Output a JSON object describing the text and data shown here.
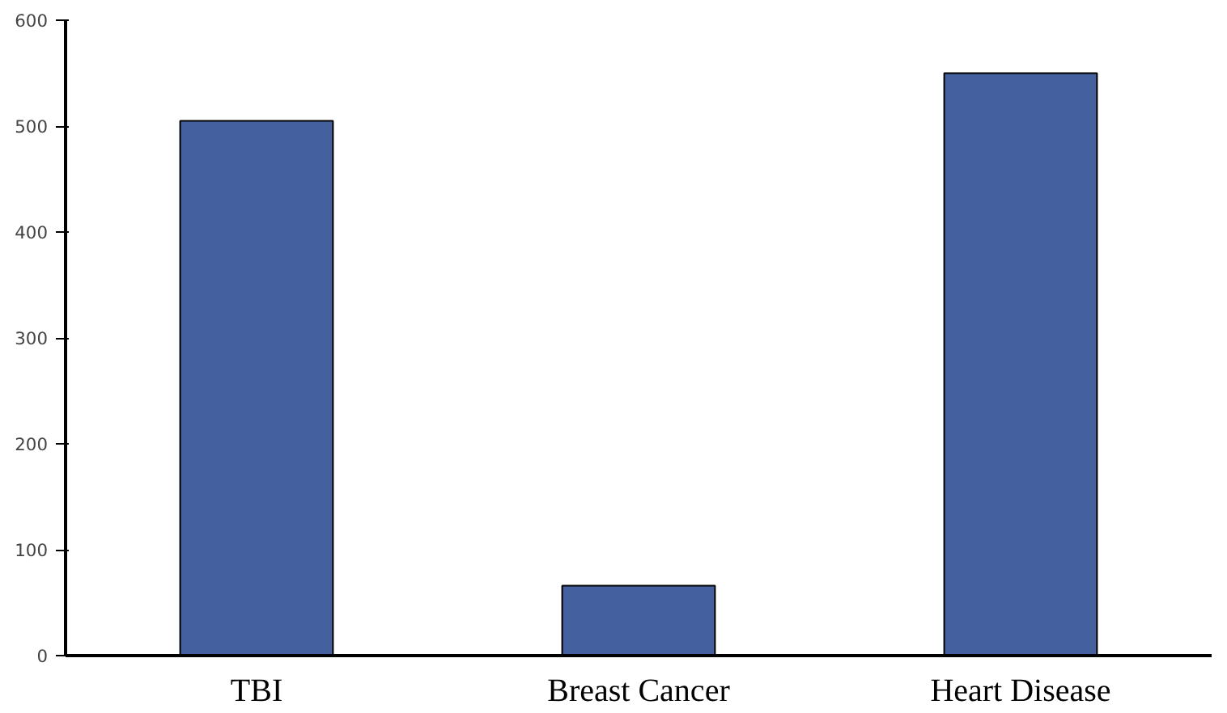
{
  "chart_data": {
    "type": "bar",
    "categories": [
      "TBI",
      "Breast Cancer",
      "Heart Disease"
    ],
    "values": [
      505,
      66,
      550
    ],
    "color": "#45609f",
    "ylim": [
      0,
      600
    ],
    "yticks": [
      0,
      100,
      200,
      300,
      400,
      500,
      600
    ],
    "grid": false
  }
}
